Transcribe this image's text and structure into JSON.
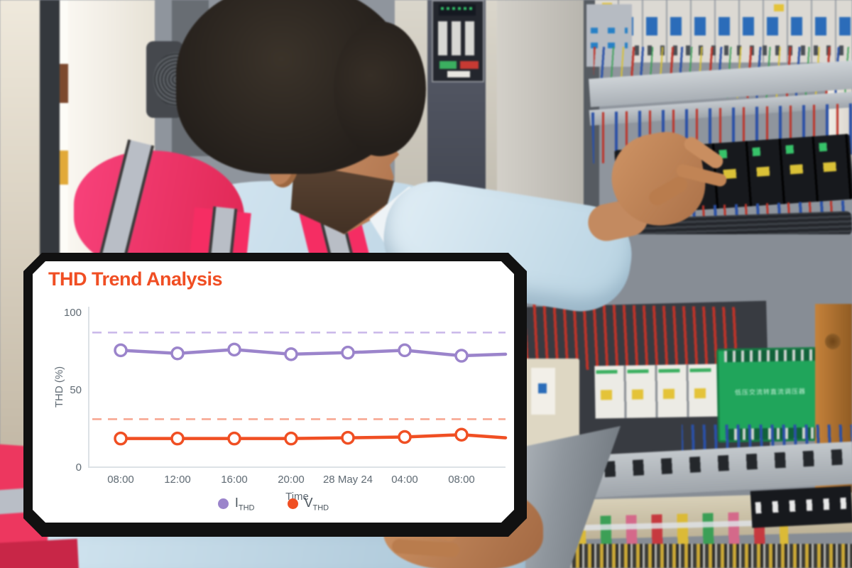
{
  "chart_data": {
    "type": "line",
    "title": "THD Trend Analysis",
    "title_color": "#f04e23",
    "xlabel": "Time",
    "ylabel": "THD (%)",
    "ylim": [
      0,
      100
    ],
    "yticks": [
      0,
      50,
      100
    ],
    "categories": [
      "08:00",
      "12:00",
      "16:00",
      "20:00",
      "28 May 24",
      "04:00",
      "08:00"
    ],
    "series": [
      {
        "name": "I_THD",
        "label_main": "I",
        "label_sub": "THD",
        "color": "#9b84cb",
        "threshold": 87,
        "threshold_color": "#c9b8ea",
        "values": [
          75.5,
          73.5,
          76,
          73,
          74,
          75.5,
          72
        ],
        "edge_value": 73
      },
      {
        "name": "V_THD",
        "label_main": "V",
        "label_sub": "THD",
        "color": "#f04f23",
        "threshold": 31,
        "threshold_color": "#f8a48e",
        "values": [
          18.5,
          18.5,
          18.5,
          18.5,
          19,
          19.5,
          21
        ],
        "edge_value": 19
      }
    ],
    "legend_position": "bottom",
    "grid": false,
    "axis_color": "#dde2e6",
    "tick_color": "#5f6a73"
  },
  "scene": {
    "green_module_label": "低压交流转直流调压器"
  }
}
